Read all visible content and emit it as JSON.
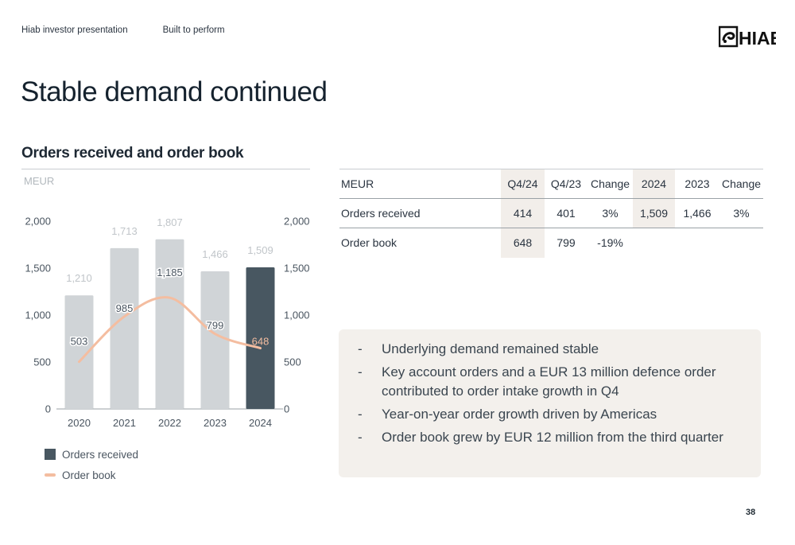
{
  "header": {
    "presentation": "Hiab investor presentation",
    "section": "Built to perform",
    "logo_text": "HIAB"
  },
  "title": "Stable demand continued",
  "chart_section_title": "Orders received and order book",
  "colors": {
    "bar_past": "#d0d4d7",
    "bar_current": "#485761",
    "order_book_line": "#f4bda0",
    "highlight": "#f2eeea"
  },
  "chart_data": {
    "type": "bar",
    "unit_label": "MEUR",
    "categories": [
      "2020",
      "2021",
      "2022",
      "2023",
      "2024"
    ],
    "series": [
      {
        "name": "Orders received",
        "type": "bar",
        "values": [
          1210,
          1713,
          1807,
          1466,
          1509
        ]
      },
      {
        "name": "Order book",
        "type": "line",
        "values": [
          503,
          985,
          1185,
          799,
          648
        ]
      }
    ],
    "y_ticks": [
      "0",
      "500",
      "1,000",
      "1,500",
      "2,000"
    ],
    "bar_labels": [
      "1,210",
      "1,713",
      "1,807",
      "1,466",
      "1,509"
    ],
    "line_labels": [
      "503",
      "985",
      "1,185",
      "799",
      "648"
    ],
    "ylim": [
      0,
      2000
    ],
    "y_axis_dual": true,
    "grid": false,
    "legend": "bottom-left"
  },
  "table": {
    "headers": [
      "MEUR",
      "Q4/24",
      "Q4/23",
      "Change",
      "2024",
      "2023",
      "Change"
    ],
    "rows": [
      [
        "Orders received",
        "414",
        "401",
        "3%",
        "1,509",
        "1,466",
        "3%"
      ],
      [
        "Order book",
        "648",
        "799",
        "-19%",
        "",
        "",
        ""
      ]
    ]
  },
  "bullets": [
    "Underlying demand remained stable",
    "Key account orders and a EUR 13 million defence order contributed to order intake growth in Q4",
    "Year-on-year order growth driven by Americas",
    "Order book grew by EUR 12 million from the third quarter"
  ],
  "page_number": "38"
}
